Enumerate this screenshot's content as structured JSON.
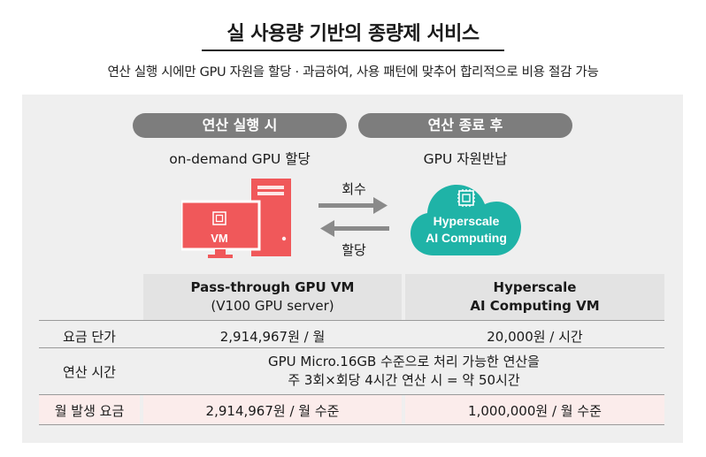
{
  "header": {
    "title": "실 사용량 기반의 종량제 서비스",
    "subtitle": "연산 실행 시에만 GPU 자원을 할당 · 과금하여, 사용 패턴에 맞추어 합리적으로 비용 절감 가능"
  },
  "diagram": {
    "left_pill": "연산 실행 시",
    "right_pill": "연산 종료 후",
    "left_caption": "on-demand GPU 할당",
    "right_caption": "GPU 자원반납",
    "vm_label": "VM",
    "cloud_line1": "Hyperscale",
    "cloud_line2": "AI Computing",
    "arrow_top_label": "회수",
    "arrow_bottom_label": "할당",
    "colors": {
      "vm_red": "#f0585a",
      "cloud_teal": "#1fb3a7",
      "pill_gray": "#7d7d7d"
    },
    "icons": [
      "monitor-icon",
      "server-tower-icon",
      "chip-icon",
      "cloud-icon",
      "arrow-right-icon",
      "arrow-left-icon"
    ]
  },
  "table": {
    "col_left_title": "Pass-through GPU VM",
    "col_left_sub": "(V100 GPU server)",
    "col_right_title": "Hyperscale",
    "col_right_sub": "AI Computing VM",
    "rows": [
      {
        "label": "요금 단가",
        "left": "2,914,967원 / 월",
        "right": "20,000원 / 시간"
      },
      {
        "label": "연산 시간",
        "span_line1": "GPU Micro.16GB 수준으로 처리 가능한 연산을",
        "span_line2": "주 3회×회당 4시간 연산 시 = 약 50시간"
      },
      {
        "label": "월 발생 요금",
        "left": "2,914,967원 / 월 수준",
        "right": "1,000,000원 / 월 수준"
      }
    ]
  }
}
